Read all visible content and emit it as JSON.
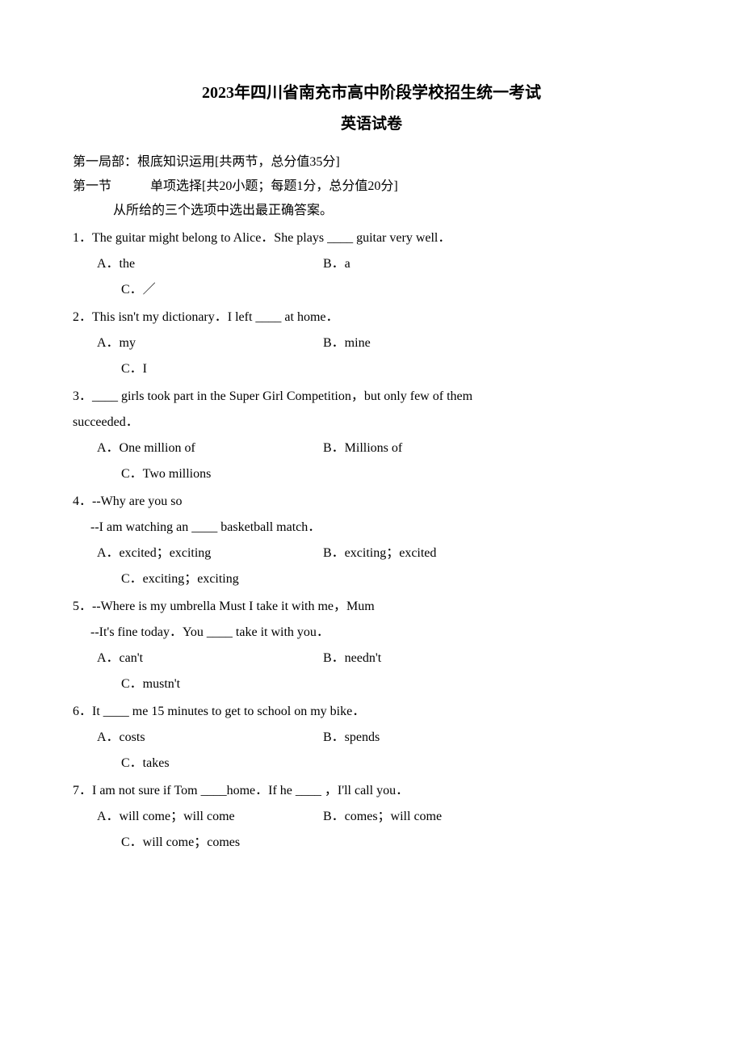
{
  "title": "2023年四川省南充市高中阶段学校招生统一考试",
  "subtitle": "英语试卷",
  "section1": "第一局部：根底知识运用[共两节，总分值35分]",
  "section1_1": "第一节　　　单项选择[共20小题；每题1分，总分值20分]",
  "instruction": "从所给的三个选项中选出最正确答案。",
  "q1": {
    "text": "1．The guitar might belong to Alice．She plays ____ guitar very well．",
    "a": "A．the",
    "b": "B．a",
    "c": "C．／"
  },
  "q2": {
    "text": "2．This isn't my dictionary．I left ____ at home．",
    "a": "A．my",
    "b": "B．mine",
    "c": "C．I"
  },
  "q3": {
    "text": "3．____ girls took part in the Super Girl Competition，but only few of them",
    "text2": "succeeded．",
    "a": "A．One million of",
    "b": "B．Millions of",
    "c": "C．Two millions"
  },
  "q4": {
    "text": "4．--Why are you so",
    "text2": "--I am watching an ____ basketball match．",
    "a": "A．excited；exciting",
    "b": "B．exciting；excited",
    "c": "C．exciting；exciting"
  },
  "q5": {
    "text": "5．--Where is my umbrella Must I take it with me，Mum",
    "text2": "--It's fine today．You ____ take it with you．",
    "a": "A．can't",
    "b": "B．needn't",
    "c": "C．mustn't"
  },
  "q6": {
    "text": "6．It ____ me 15 minutes to get to school on my bike．",
    "a": "A．costs",
    "b": "B．spends",
    "c": "C．takes"
  },
  "q7": {
    "text": "7．I am not sure if Tom ____home．If he ____ ，I'll call you．",
    "a": "A．will come；will come",
    "b": "B．comes；will come",
    "c": "C．will come；comes"
  }
}
